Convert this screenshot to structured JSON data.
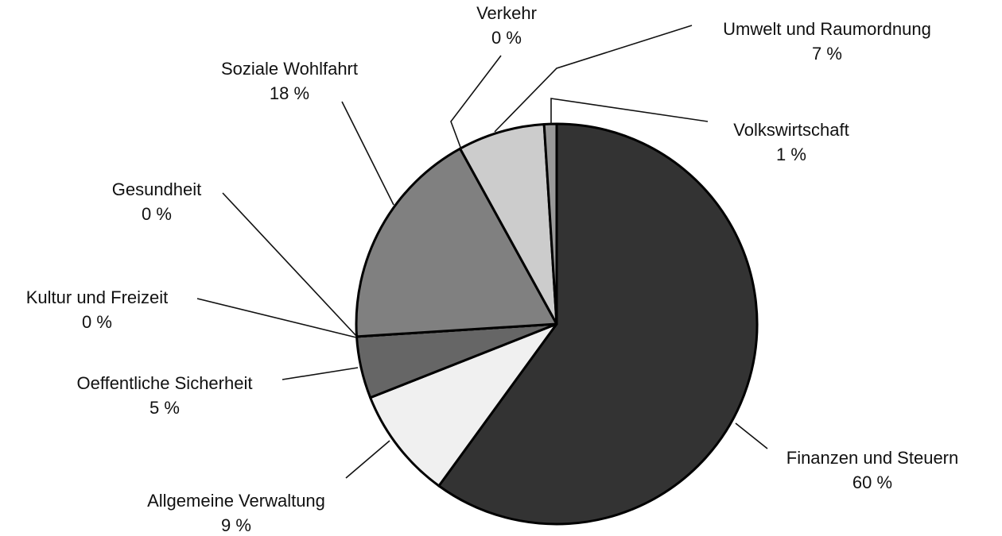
{
  "chart_data": {
    "type": "pie",
    "categories": [
      "Finanzen und Steuern",
      "Allgemeine Verwaltung",
      "Oeffentliche Sicherheit",
      "Kultur und Freizeit",
      "Gesundheit",
      "Soziale Wohlfahrt",
      "Verkehr",
      "Umwelt und Raumordnung",
      "Volkswirtschaft"
    ],
    "values": [
      60,
      9,
      5,
      0,
      0,
      18,
      0,
      7,
      1
    ],
    "value_labels": [
      "60 %",
      "9 %",
      "5 %",
      "0 %",
      "0 %",
      "18 %",
      "0 %",
      "7 %",
      "1 %"
    ],
    "colors": [
      "#333333",
      "#f0f0f0",
      "#666666",
      "#4d4d4d",
      "#b3b3b3",
      "#808080",
      "#e0e0e0",
      "#cccccc",
      "#999999"
    ]
  }
}
